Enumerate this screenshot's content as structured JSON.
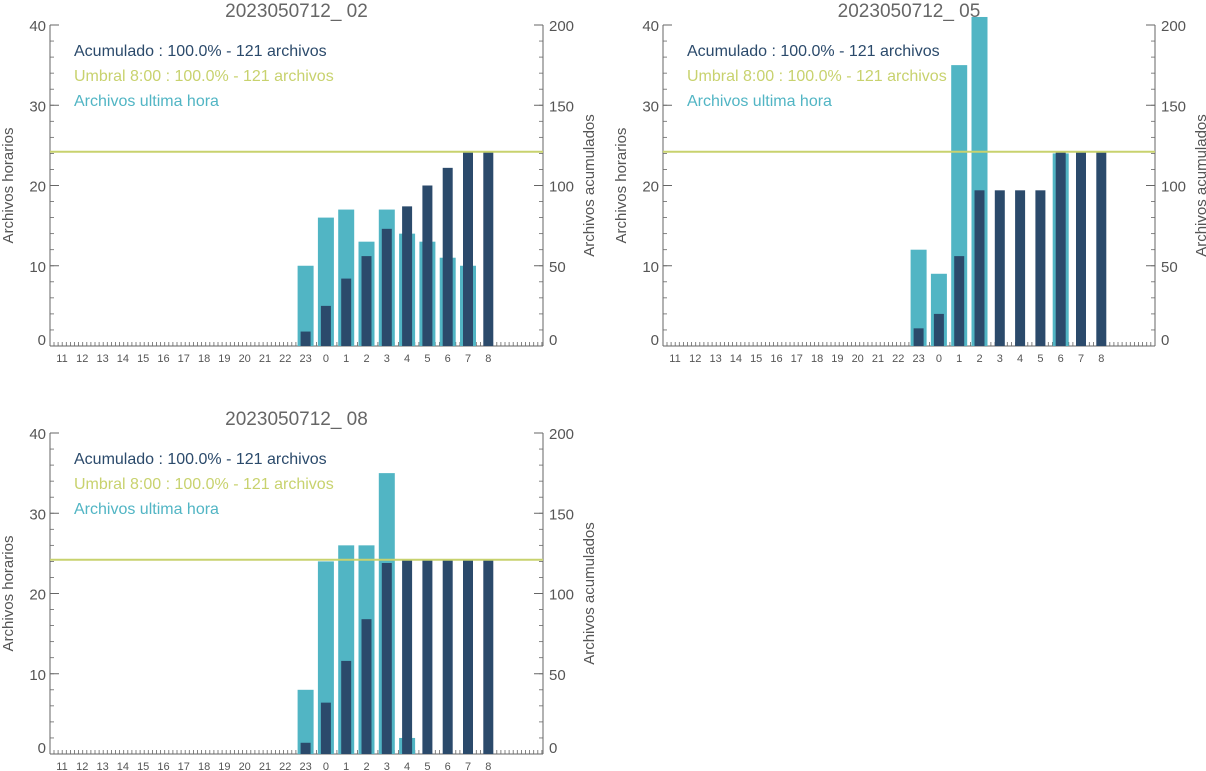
{
  "colors": {
    "hourly_bar": "#51b5c4",
    "cumulative_bar": "#2b4a6b",
    "threshold_line": "#c8d26e",
    "axis": "#666666",
    "text": "#555555"
  },
  "chart_data": [
    {
      "type": "bar",
      "title": "2023050712_ 02",
      "ylabel": "Archivos horarios",
      "ylabel_right": "Archivos acumulados",
      "ylim": [
        0,
        40
      ],
      "ylim_right": [
        0,
        200
      ],
      "yticks": [
        0,
        10,
        20,
        30,
        40
      ],
      "yticks_right": [
        0,
        50,
        100,
        150,
        200
      ],
      "grid": false,
      "categories": [
        "11",
        "12",
        "13",
        "14",
        "15",
        "16",
        "17",
        "18",
        "19",
        "20",
        "21",
        "22",
        "23",
        "0",
        "1",
        "2",
        "3",
        "4",
        "5",
        "6",
        "7",
        "8"
      ],
      "legend": [
        {
          "text": "Acumulado : 100.0% - 121 archivos",
          "color": "#2b4a6b"
        },
        {
          "text": "Umbral 8:00 : 100.0% - 121 archivos",
          "color": "#c8d26e"
        },
        {
          "text": "Archivos ultima hora",
          "color": "#51b5c4"
        }
      ],
      "threshold": 121,
      "series": [
        {
          "name": "Archivos ultima hora",
          "axis": "left",
          "values": [
            0,
            0,
            0,
            0,
            0,
            0,
            0,
            0,
            0,
            0,
            0,
            0,
            10,
            16,
            17,
            13,
            17,
            14,
            13,
            11,
            10,
            0
          ]
        },
        {
          "name": "Acumulado",
          "axis": "right",
          "values": [
            0,
            0,
            0,
            0,
            0,
            0,
            0,
            0,
            0,
            0,
            0,
            0,
            9,
            25,
            42,
            56,
            73,
            87,
            100,
            111,
            121,
            121
          ]
        }
      ]
    },
    {
      "type": "bar",
      "title": "2023050712_ 05",
      "ylabel": "Archivos horarios",
      "ylabel_right": "Archivos acumulados",
      "ylim": [
        0,
        40
      ],
      "ylim_right": [
        0,
        200
      ],
      "yticks": [
        0,
        10,
        20,
        30,
        40
      ],
      "yticks_right": [
        0,
        50,
        100,
        150,
        200
      ],
      "grid": false,
      "categories": [
        "11",
        "12",
        "13",
        "14",
        "15",
        "16",
        "17",
        "18",
        "19",
        "20",
        "21",
        "22",
        "23",
        "0",
        "1",
        "2",
        "3",
        "4",
        "5",
        "6",
        "7",
        "8"
      ],
      "legend": [
        {
          "text": "Acumulado : 100.0% - 121 archivos",
          "color": "#2b4a6b"
        },
        {
          "text": "Umbral 8:00 : 100.0% - 121 archivos",
          "color": "#c8d26e"
        },
        {
          "text": "Archivos ultima hora",
          "color": "#51b5c4"
        }
      ],
      "threshold": 121,
      "series": [
        {
          "name": "Archivos ultima hora",
          "axis": "left",
          "values": [
            0,
            0,
            0,
            0,
            0,
            0,
            0,
            0,
            0,
            0,
            0,
            0,
            12,
            9,
            35,
            41,
            0,
            0,
            0,
            24,
            0,
            0
          ]
        },
        {
          "name": "Acumulado",
          "axis": "right",
          "values": [
            0,
            0,
            0,
            0,
            0,
            0,
            0,
            0,
            0,
            0,
            0,
            0,
            11,
            20,
            56,
            97,
            97,
            97,
            97,
            121,
            121,
            121
          ]
        }
      ]
    },
    {
      "type": "bar",
      "title": "2023050712_ 08",
      "ylabel": "Archivos horarios",
      "ylabel_right": "Archivos acumulados",
      "ylim": [
        0,
        40
      ],
      "ylim_right": [
        0,
        200
      ],
      "yticks": [
        0,
        10,
        20,
        30,
        40
      ],
      "yticks_right": [
        0,
        50,
        100,
        150,
        200
      ],
      "grid": false,
      "categories": [
        "11",
        "12",
        "13",
        "14",
        "15",
        "16",
        "17",
        "18",
        "19",
        "20",
        "21",
        "22",
        "23",
        "0",
        "1",
        "2",
        "3",
        "4",
        "5",
        "6",
        "7",
        "8"
      ],
      "legend": [
        {
          "text": "Acumulado : 100.0% - 121 archivos",
          "color": "#2b4a6b"
        },
        {
          "text": "Umbral 8:00 : 100.0% - 121 archivos",
          "color": "#c8d26e"
        },
        {
          "text": "Archivos ultima hora",
          "color": "#51b5c4"
        }
      ],
      "threshold": 121,
      "series": [
        {
          "name": "Archivos ultima hora",
          "axis": "left",
          "values": [
            0,
            0,
            0,
            0,
            0,
            0,
            0,
            0,
            0,
            0,
            0,
            0,
            8,
            24,
            26,
            26,
            35,
            2,
            0,
            0,
            0,
            0
          ]
        },
        {
          "name": "Acumulado",
          "axis": "right",
          "values": [
            0,
            0,
            0,
            0,
            0,
            0,
            0,
            0,
            0,
            0,
            0,
            0,
            7,
            32,
            58,
            84,
            119,
            121,
            121,
            121,
            121,
            121
          ]
        }
      ]
    }
  ]
}
